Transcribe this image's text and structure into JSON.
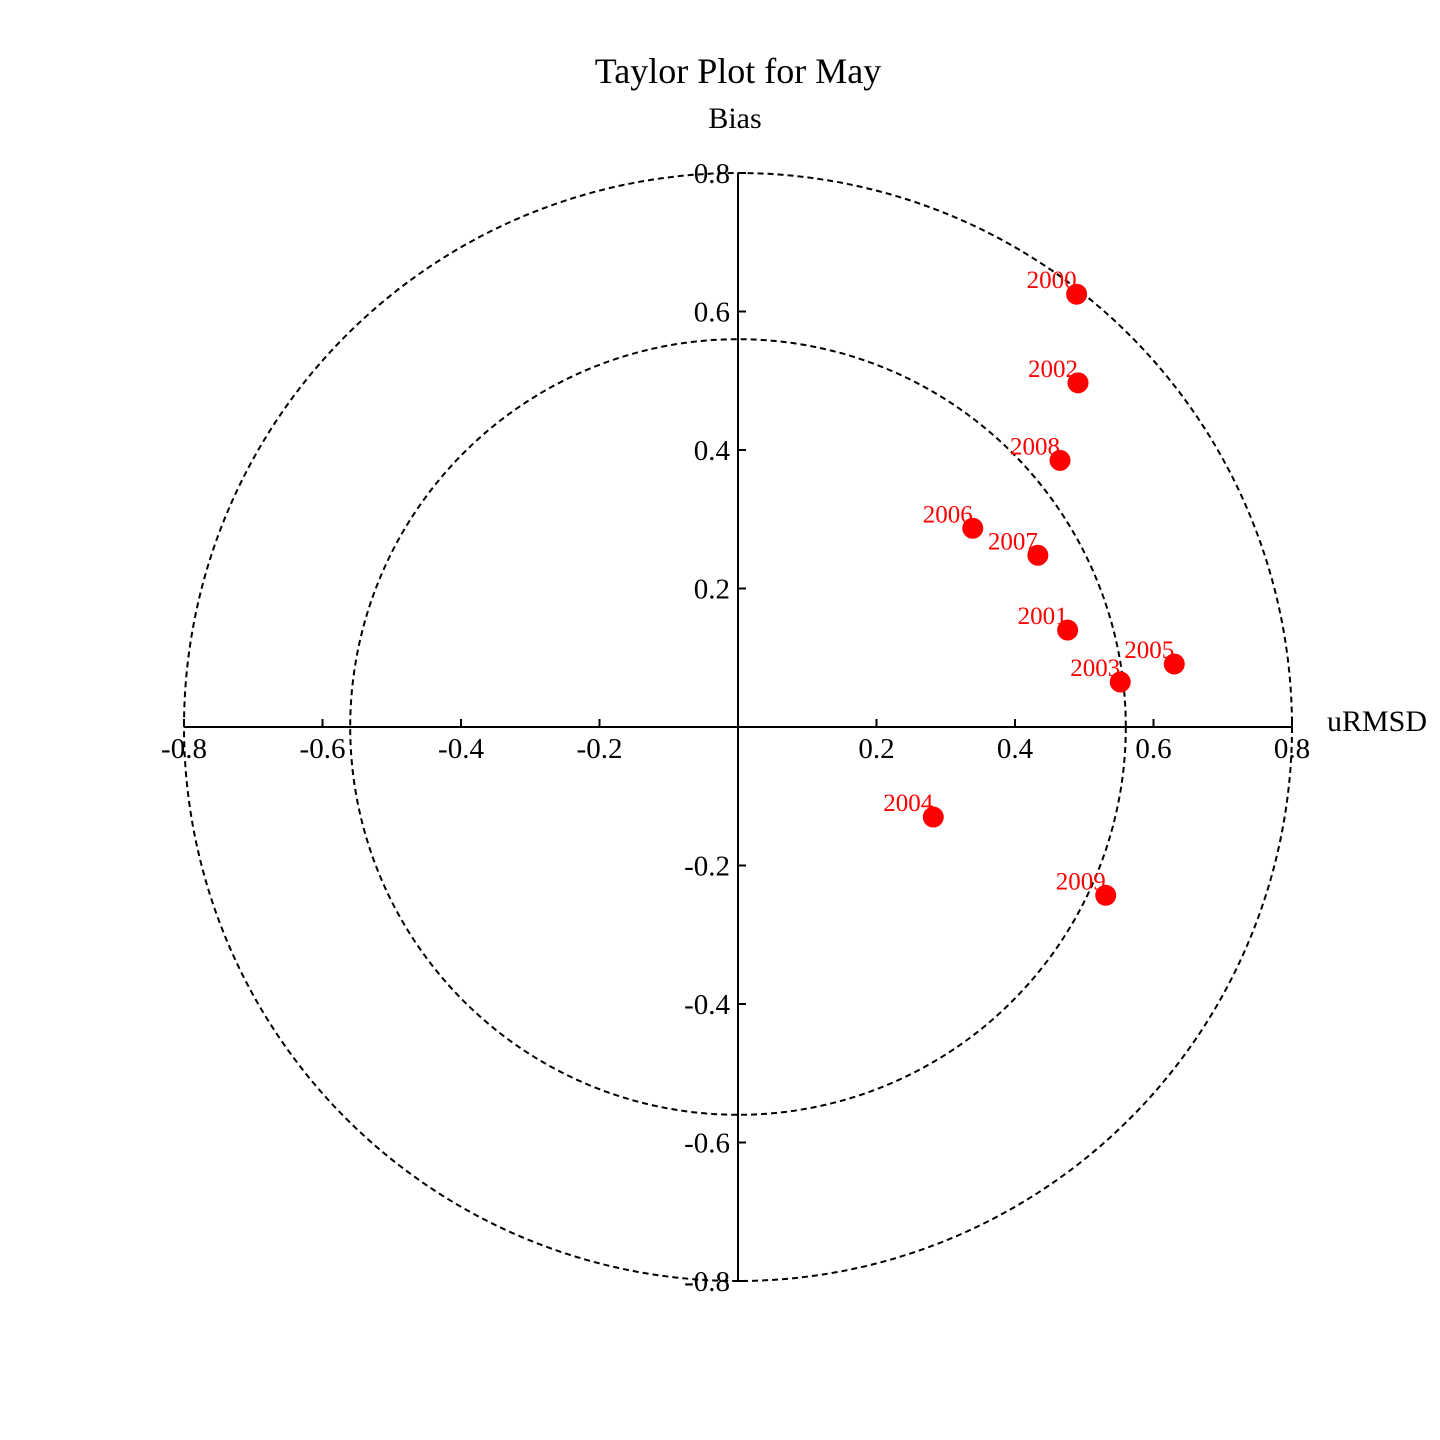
{
  "chart_data": {
    "type": "scatter",
    "title": "Taylor Plot for May",
    "xlabel": "uRMSD",
    "ylabel": "Bias",
    "xlim": [
      -0.8,
      0.8
    ],
    "ylim": [
      -0.8,
      0.8
    ],
    "xticks": [
      {
        "value": -0.8,
        "label": "-0.8"
      },
      {
        "value": -0.6,
        "label": "-0.6"
      },
      {
        "value": -0.4,
        "label": "-0.4"
      },
      {
        "value": -0.2,
        "label": "-0.2"
      },
      {
        "value": 0.2,
        "label": "0.2"
      },
      {
        "value": 0.4,
        "label": "0.4"
      },
      {
        "value": 0.6,
        "label": "0.6"
      },
      {
        "value": 0.8,
        "label": "0.8"
      }
    ],
    "yticks": [
      {
        "value": 0.8,
        "label": "0.8"
      },
      {
        "value": 0.6,
        "label": "0.6"
      },
      {
        "value": 0.4,
        "label": "0.4"
      },
      {
        "value": 0.2,
        "label": "0.2"
      },
      {
        "value": -0.2,
        "label": "-0.2"
      },
      {
        "value": -0.4,
        "label": "-0.4"
      },
      {
        "value": -0.6,
        "label": "-0.6"
      },
      {
        "value": -0.8,
        "label": "-0.8"
      }
    ],
    "circles": [
      0.56,
      0.8
    ],
    "marker_color": "#ff0000",
    "points": [
      {
        "label": "2000",
        "x": 0.489,
        "y": 0.625
      },
      {
        "label": "2002",
        "x": 0.491,
        "y": 0.497
      },
      {
        "label": "2008",
        "x": 0.465,
        "y": 0.385
      },
      {
        "label": "2006",
        "x": 0.339,
        "y": 0.287
      },
      {
        "label": "2007",
        "x": 0.433,
        "y": 0.248
      },
      {
        "label": "2001",
        "x": 0.476,
        "y": 0.14
      },
      {
        "label": "2005",
        "x": 0.63,
        "y": 0.091
      },
      {
        "label": "2003",
        "x": 0.552,
        "y": 0.065
      },
      {
        "label": "2004",
        "x": 0.282,
        "y": -0.13
      },
      {
        "label": "2009",
        "x": 0.531,
        "y": -0.243
      }
    ]
  }
}
